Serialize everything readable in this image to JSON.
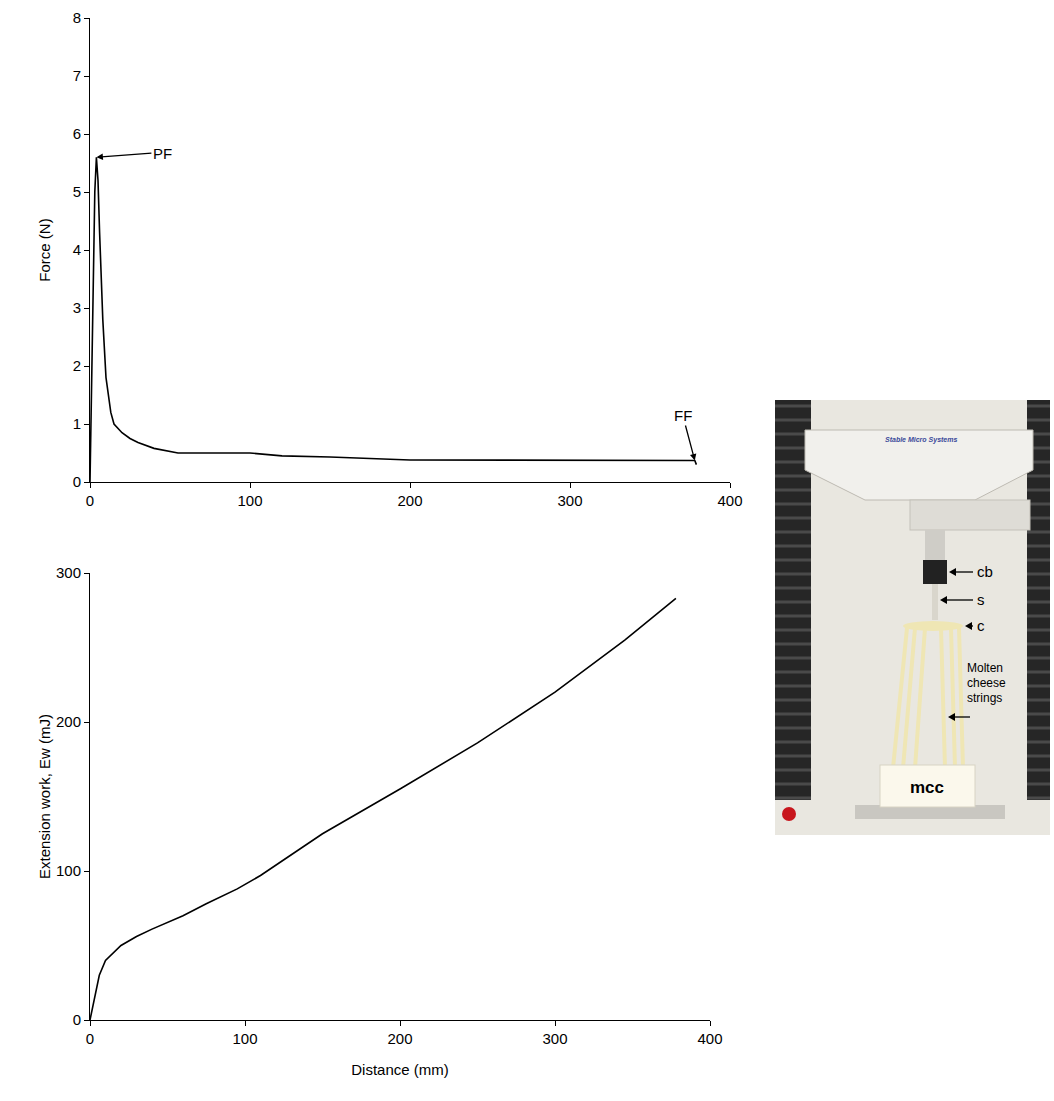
{
  "chart_data": [
    {
      "type": "line",
      "y_label": "Force (N)",
      "x": [
        0,
        1,
        2,
        3,
        4,
        5,
        6,
        8,
        10,
        12,
        13,
        15,
        20,
        25,
        30,
        40,
        50,
        55,
        70,
        100,
        120,
        150,
        200,
        250,
        300,
        350,
        378,
        379
      ],
      "values": [
        0,
        1.5,
        3.5,
        5.0,
        5.6,
        5.2,
        4.3,
        2.8,
        1.8,
        1.35,
        1.2,
        1.0,
        0.85,
        0.75,
        0.68,
        0.58,
        0.52,
        0.5,
        0.5,
        0.5,
        0.45,
        0.43,
        0.38,
        0.38,
        0.38,
        0.38,
        0.37,
        0.3
      ],
      "color": "#000000",
      "xlim": [
        0,
        400
      ],
      "xticks": [
        0,
        100,
        200,
        300,
        400
      ],
      "ylim": [
        0,
        8
      ],
      "yticks": [
        0,
        1,
        2,
        3,
        4,
        5,
        6,
        7,
        8
      ],
      "annotations": [
        {
          "text": "PF",
          "x": 4,
          "y": 5.6
        },
        {
          "text": "FF",
          "x": 378,
          "y": 0.37
        }
      ],
      "grid": false
    },
    {
      "type": "line",
      "x_label": "Distance (mm)",
      "y_label": "Extension work, Ew (mJ)",
      "x": [
        0,
        3,
        6,
        10,
        15,
        20,
        30,
        40,
        60,
        75,
        95,
        110,
        150,
        200,
        250,
        300,
        345,
        378
      ],
      "values": [
        0,
        15,
        30,
        40,
        45,
        50,
        56,
        61,
        70,
        78,
        88,
        97,
        125,
        155,
        186,
        220,
        255,
        283
      ],
      "color": "#000000",
      "xlim": [
        0,
        400
      ],
      "xticks": [
        0,
        100,
        200,
        300,
        400
      ],
      "ylim": [
        0,
        300
      ],
      "yticks": [
        0,
        100,
        200,
        300
      ],
      "grid": false
    }
  ],
  "photo": {
    "brand": "Stable Micro Systems",
    "labels": {
      "cb": "cb",
      "s": "s",
      "c": "c",
      "strings": "Molten cheese strings",
      "block": "mcc"
    }
  }
}
